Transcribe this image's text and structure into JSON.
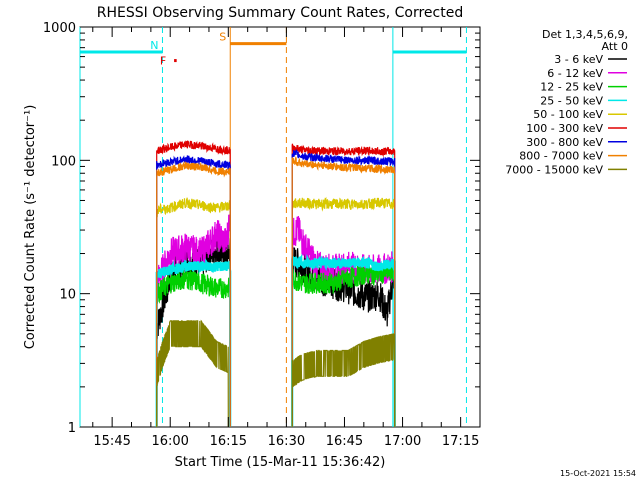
{
  "chart_data": {
    "type": "line",
    "title": "RHESSI Observing Summary Count Rates, Corrected",
    "xlabel": "Start Time (15-Mar-11 15:36:42)",
    "ylabel": "Corrected Count Rate (s⁻¹ detector⁻¹)",
    "y_scale": "log",
    "ylim": [
      1,
      1000
    ],
    "xlim": [
      "15:36:42",
      "17:20:00"
    ],
    "y_ticks": [
      "1",
      "10",
      "100",
      "1000"
    ],
    "x_ticks": [
      "15:45",
      "16:00",
      "16:15",
      "16:30",
      "16:45",
      "17:00",
      "17:15"
    ],
    "legend_header": [
      "Det 1,3,4,5,6,9,",
      "Att 0"
    ],
    "legend_position": "right",
    "footer_date": "15-Oct-2021 15:54",
    "series": [
      {
        "name": "3 - 6 keV",
        "color": "#000000",
        "segments": [
          {
            "x": [
              "15:56:30",
              "15:58:00",
              "16:00:00",
              "16:04:00",
              "16:08:00",
              "16:12:00",
              "16:14:30",
              "16:15:30"
            ],
            "y": [
              5.5,
              8,
              13,
              18,
              17,
              22,
              18,
              22
            ]
          },
          {
            "x": [
              "16:31:30",
              "16:34:00",
              "16:38:00",
              "16:42:00",
              "16:46:00",
              "16:50:00",
              "16:52:00",
              "16:54:00",
              "16:56:00",
              "16:58:00"
            ],
            "y": [
              18,
              16,
              13,
              12,
              11,
              9.5,
              9.5,
              10,
              7,
              15
            ]
          }
        ]
      },
      {
        "name": "6 - 12 keV",
        "color": "#e000e0",
        "segments": [
          {
            "x": [
              "15:56:30",
              "15:58:00",
              "16:00:00",
              "16:04:00",
              "16:08:00",
              "16:12:00",
              "16:14:30",
              "16:15:30"
            ],
            "y": [
              12,
              15,
              20,
              22,
              20,
              28,
              24,
              40
            ]
          },
          {
            "x": [
              "16:31:30",
              "16:33:00",
              "16:35:00",
              "16:38:00",
              "16:42:00",
              "16:46:00",
              "16:50:00",
              "16:54:00",
              "16:58:00"
            ],
            "y": [
              28,
              30,
              22,
              16,
              15,
              16,
              15,
              15,
              16
            ]
          }
        ]
      },
      {
        "name": "12 - 25 keV",
        "color": "#00d000",
        "segments": [
          {
            "x": [
              "15:56:30",
              "16:00:00",
              "16:04:00",
              "16:08:00",
              "16:12:00",
              "16:15:30"
            ],
            "y": [
              10,
              12,
              13,
              12,
              11,
              11
            ]
          },
          {
            "x": [
              "16:31:30",
              "16:34:00",
              "16:38:00",
              "16:42:00",
              "16:46:00",
              "16:50:00",
              "16:54:00",
              "16:58:00"
            ],
            "y": [
              13,
              12,
              12,
              12,
              13,
              14,
              14,
              15
            ]
          }
        ]
      },
      {
        "name": "25 - 50 keV",
        "color": "#00e8e8",
        "segments": [
          {
            "x": [
              "15:56:30",
              "16:00:00",
              "16:04:00",
              "16:08:00",
              "16:12:00",
              "16:15:30"
            ],
            "y": [
              14,
              15,
              16,
              16,
              16,
              16
            ]
          },
          {
            "x": [
              "16:31:30",
              "16:34:00",
              "16:38:00",
              "16:42:00",
              "16:46:00",
              "16:50:00",
              "16:54:00",
              "16:58:00"
            ],
            "y": [
              18,
              17,
              17,
              17,
              17,
              17,
              16,
              17
            ]
          }
        ]
      },
      {
        "name": "50 - 100 keV",
        "color": "#d8c800",
        "segments": [
          {
            "x": [
              "15:56:30",
              "16:00:00",
              "16:04:00",
              "16:08:00",
              "16:12:00",
              "16:15:30"
            ],
            "y": [
              42,
              44,
              48,
              46,
              44,
              46
            ]
          },
          {
            "x": [
              "16:31:30",
              "16:34:00",
              "16:38:00",
              "16:42:00",
              "16:46:00",
              "16:50:00",
              "16:54:00",
              "16:58:00"
            ],
            "y": [
              47,
              48,
              47,
              47,
              47,
              47,
              48,
              47
            ]
          }
        ]
      },
      {
        "name": "100 - 300 keV",
        "color": "#e00000",
        "segments": [
          {
            "x": [
              "15:56:30",
              "16:00:00",
              "16:04:00",
              "16:08:00",
              "16:12:00",
              "16:15:30"
            ],
            "y": [
              118,
              125,
              132,
              128,
              122,
              118
            ]
          },
          {
            "x": [
              "16:31:30",
              "16:34:00",
              "16:38:00",
              "16:42:00",
              "16:46:00",
              "16:50:00",
              "16:54:00",
              "16:58:00"
            ],
            "y": [
              125,
              120,
              118,
              117,
              117,
              118,
              117,
              117
            ]
          }
        ]
      },
      {
        "name": "300 - 800 keV",
        "color": "#0000e0",
        "segments": [
          {
            "x": [
              "15:56:30",
              "16:00:00",
              "16:04:00",
              "16:08:00",
              "16:12:00",
              "16:15:30"
            ],
            "y": [
              93,
              97,
              102,
              99,
              94,
              92
            ]
          },
          {
            "x": [
              "16:31:30",
              "16:34:00",
              "16:38:00",
              "16:42:00",
              "16:46:00",
              "16:50:00",
              "16:54:00",
              "16:58:00"
            ],
            "y": [
              113,
              108,
              104,
              102,
              100,
              100,
              99,
              98
            ]
          }
        ]
      },
      {
        "name": "800 - 7000 keV",
        "color": "#f08000",
        "segments": [
          {
            "x": [
              "15:56:30",
              "16:00:00",
              "16:04:00",
              "16:08:00",
              "16:12:00",
              "16:15:30"
            ],
            "y": [
              80,
              85,
              91,
              89,
              83,
              82
            ]
          },
          {
            "x": [
              "16:31:30",
              "16:34:00",
              "16:38:00",
              "16:42:00",
              "16:46:00",
              "16:50:00",
              "16:54:00",
              "16:58:00"
            ],
            "y": [
              100,
              95,
              92,
              90,
              88,
              87,
              86,
              85
            ]
          }
        ]
      },
      {
        "name": "7000 - 15000 keV",
        "color": "#808000",
        "segments": [
          {
            "x": [
              "15:56:30",
              "15:58:00",
              "16:00:00",
              "16:04:00",
              "16:08:00",
              "16:12:00",
              "16:15:00"
            ],
            "y": [
              2.5,
              3.5,
              5,
              5,
              5,
              3.5,
              3.2
            ]
          },
          {
            "x": [
              "16:31:30",
              "16:34:00",
              "16:38:00",
              "16:42:00",
              "16:46:00",
              "16:50:00",
              "16:54:00",
              "16:58:00"
            ],
            "y": [
              2.5,
              2.8,
              3,
              3,
              3,
              3.5,
              3.8,
              4
            ]
          }
        ]
      }
    ],
    "flags": [
      {
        "label": "N",
        "color": "#00e8e8",
        "level": 650,
        "ranges": [
          [
            "15:36:42",
            "15:58:00"
          ],
          [
            "16:57:30",
            "17:16:30"
          ]
        ],
        "marker_at": "15:58:00"
      },
      {
        "label": "S",
        "color": "#f08000",
        "level": 750,
        "ranges": [
          [
            "16:15:30",
            "16:30:00"
          ]
        ],
        "marker_at": "16:15:30"
      },
      {
        "label": "F",
        "color": "#e00000",
        "level": 560,
        "ranges": [
          [
            "16:01:00",
            "16:01:40"
          ]
        ],
        "marker_at": "16:00:00"
      }
    ],
    "markers": [
      {
        "type": "solid",
        "color": "#00e8e8",
        "times": [
          "15:36:42",
          "16:57:30"
        ]
      },
      {
        "type": "dashed",
        "color": "#00e8e8",
        "times": [
          "15:58:00",
          "17:16:30"
        ]
      },
      {
        "type": "solid",
        "color": "#f08000",
        "times": [
          "16:15:30"
        ]
      },
      {
        "type": "dashed",
        "color": "#f08000",
        "times": [
          "16:30:00"
        ]
      }
    ]
  }
}
